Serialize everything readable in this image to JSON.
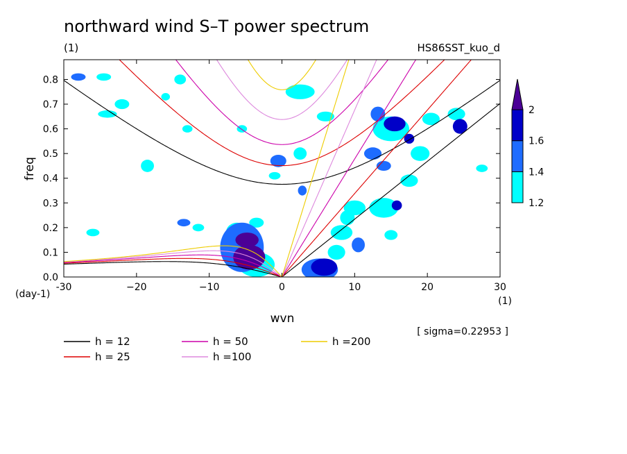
{
  "chart_data": {
    "type": "contour",
    "title": "northward wind S–T power spectrum",
    "subtitle_left": "(1)",
    "subtitle_right": "HS86SST_kuo_d",
    "xlabel": "wvn",
    "ylabel": "freq",
    "x_unit": "(1)",
    "y_unit": "(day-1)",
    "xlim": [
      -30,
      30
    ],
    "ylim": [
      0,
      0.88
    ],
    "x_ticks": [
      -30,
      -20,
      -10,
      0,
      10,
      20,
      30
    ],
    "x_tick_labels": [
      "-30",
      "−20",
      "−10",
      "0",
      "10",
      "20",
      "30"
    ],
    "y_ticks": [
      0,
      0.1,
      0.2,
      0.3,
      0.4,
      0.5,
      0.6,
      0.7,
      0.8
    ],
    "y_tick_labels": [
      "0.0",
      "0.1",
      "0.2",
      "0.3",
      "0.4",
      "0.5",
      "0.6",
      "0.7",
      "0.8"
    ],
    "sigma_label": "[ sigma=0.22953 ]",
    "colorbar": {
      "levels": [
        1.2,
        1.4,
        1.6,
        2
      ],
      "labels": [
        "1.2",
        "1.4",
        "1.6",
        "2"
      ],
      "colors": [
        "#00ffff",
        "#1e6cff",
        "#0000c8",
        "#4b0096"
      ]
    },
    "dispersion_curves": [
      {
        "h": 12,
        "label": "h = 12",
        "color": "#000000"
      },
      {
        "h": 25,
        "label": "h = 25",
        "color": "#dd0000"
      },
      {
        "h": 50,
        "label": "h = 50",
        "color": "#cc00aa"
      },
      {
        "h": 100,
        "label": "h =100",
        "color": "#dd88dd"
      },
      {
        "h": 200,
        "label": "h =200",
        "color": "#eecc00"
      }
    ],
    "contour_blobs": [
      {
        "x": -4.5,
        "y": 0.08,
        "rx": 2.2,
        "ry": 0.05,
        "level": 3
      },
      {
        "x": -4.8,
        "y": 0.15,
        "rx": 1.6,
        "ry": 0.03,
        "level": 3
      },
      {
        "x": -5.5,
        "y": 0.12,
        "rx": 3.0,
        "ry": 0.1,
        "level": 1
      },
      {
        "x": -3.5,
        "y": 0.05,
        "rx": 2.5,
        "ry": 0.05,
        "level": 0
      },
      {
        "x": -6.2,
        "y": 0.18,
        "rx": 1.5,
        "ry": 0.04,
        "level": 0
      },
      {
        "x": 5.8,
        "y": 0.04,
        "rx": 1.8,
        "ry": 0.035,
        "level": 2
      },
      {
        "x": 5.2,
        "y": 0.03,
        "rx": 2.5,
        "ry": 0.045,
        "level": 1
      },
      {
        "x": 7.5,
        "y": 0.1,
        "rx": 1.2,
        "ry": 0.03,
        "level": 0
      },
      {
        "x": 8.2,
        "y": 0.18,
        "rx": 1.5,
        "ry": 0.03,
        "level": 0
      },
      {
        "x": 10.5,
        "y": 0.13,
        "rx": 0.9,
        "ry": 0.03,
        "level": 1
      },
      {
        "x": 15.5,
        "y": 0.62,
        "rx": 1.5,
        "ry": 0.03,
        "level": 2
      },
      {
        "x": 15.0,
        "y": 0.6,
        "rx": 2.5,
        "ry": 0.05,
        "level": 0
      },
      {
        "x": 17.5,
        "y": 0.56,
        "rx": 0.7,
        "ry": 0.02,
        "level": 2
      },
      {
        "x": 12.5,
        "y": 0.5,
        "rx": 1.2,
        "ry": 0.025,
        "level": 1
      },
      {
        "x": 14.0,
        "y": 0.45,
        "rx": 1.0,
        "ry": 0.02,
        "level": 1
      },
      {
        "x": 19.0,
        "y": 0.5,
        "rx": 1.3,
        "ry": 0.03,
        "level": 0
      },
      {
        "x": 24.5,
        "y": 0.61,
        "rx": 1.0,
        "ry": 0.03,
        "level": 2
      },
      {
        "x": 24.0,
        "y": 0.66,
        "rx": 1.2,
        "ry": 0.025,
        "level": 0
      },
      {
        "x": 15.8,
        "y": 0.29,
        "rx": 0.7,
        "ry": 0.02,
        "level": 2
      },
      {
        "x": 13.2,
        "y": 0.66,
        "rx": 1.0,
        "ry": 0.03,
        "level": 1
      },
      {
        "x": 6.0,
        "y": 0.65,
        "rx": 1.2,
        "ry": 0.02,
        "level": 0
      },
      {
        "x": 2.5,
        "y": 0.5,
        "rx": 0.9,
        "ry": 0.025,
        "level": 0
      },
      {
        "x": -0.5,
        "y": 0.47,
        "rx": 1.1,
        "ry": 0.025,
        "level": 1
      },
      {
        "x": -18.5,
        "y": 0.45,
        "rx": 0.9,
        "ry": 0.025,
        "level": 0
      },
      {
        "x": -24.0,
        "y": 0.66,
        "rx": 1.3,
        "ry": 0.015,
        "level": 0
      },
      {
        "x": -28.0,
        "y": 0.81,
        "rx": 1.0,
        "ry": 0.015,
        "level": 1
      },
      {
        "x": -13.5,
        "y": 0.22,
        "rx": 0.9,
        "ry": 0.015,
        "level": 1
      },
      {
        "x": 2.8,
        "y": 0.35,
        "rx": 0.6,
        "ry": 0.02,
        "level": 1
      },
      {
        "x": 2.5,
        "y": 0.75,
        "rx": 2.0,
        "ry": 0.03,
        "level": 0
      },
      {
        "x": -14.0,
        "y": 0.8,
        "rx": 0.8,
        "ry": 0.02,
        "level": 0
      },
      {
        "x": -24.5,
        "y": 0.81,
        "rx": 1.0,
        "ry": 0.015,
        "level": 0
      },
      {
        "x": -22.0,
        "y": 0.7,
        "rx": 1.0,
        "ry": 0.02,
        "level": 0
      },
      {
        "x": -13.0,
        "y": 0.6,
        "rx": 0.7,
        "ry": 0.015,
        "level": 0
      },
      {
        "x": -5.5,
        "y": 0.6,
        "rx": 0.7,
        "ry": 0.015,
        "level": 0
      },
      {
        "x": 14.0,
        "y": 0.28,
        "rx": 2.0,
        "ry": 0.04,
        "level": 0
      },
      {
        "x": 17.5,
        "y": 0.39,
        "rx": 1.2,
        "ry": 0.025,
        "level": 0
      },
      {
        "x": 20.5,
        "y": 0.64,
        "rx": 1.2,
        "ry": 0.025,
        "level": 0
      },
      {
        "x": 27.5,
        "y": 0.44,
        "rx": 0.8,
        "ry": 0.015,
        "level": 0
      },
      {
        "x": -26.0,
        "y": 0.18,
        "rx": 0.9,
        "ry": 0.015,
        "level": 0
      },
      {
        "x": 10.0,
        "y": 0.28,
        "rx": 1.5,
        "ry": 0.03,
        "level": 0
      },
      {
        "x": 9.0,
        "y": 0.24,
        "rx": 1.0,
        "ry": 0.03,
        "level": 0
      },
      {
        "x": -3.5,
        "y": 0.22,
        "rx": 1.0,
        "ry": 0.02,
        "level": 0
      },
      {
        "x": 15.0,
        "y": 0.17,
        "rx": 0.9,
        "ry": 0.02,
        "level": 0
      },
      {
        "x": -11.5,
        "y": 0.2,
        "rx": 0.8,
        "ry": 0.015,
        "level": 0
      },
      {
        "x": -16.0,
        "y": 0.73,
        "rx": 0.6,
        "ry": 0.015,
        "level": 0
      },
      {
        "x": -1.0,
        "y": 0.41,
        "rx": 0.8,
        "ry": 0.015,
        "level": 0
      }
    ]
  }
}
